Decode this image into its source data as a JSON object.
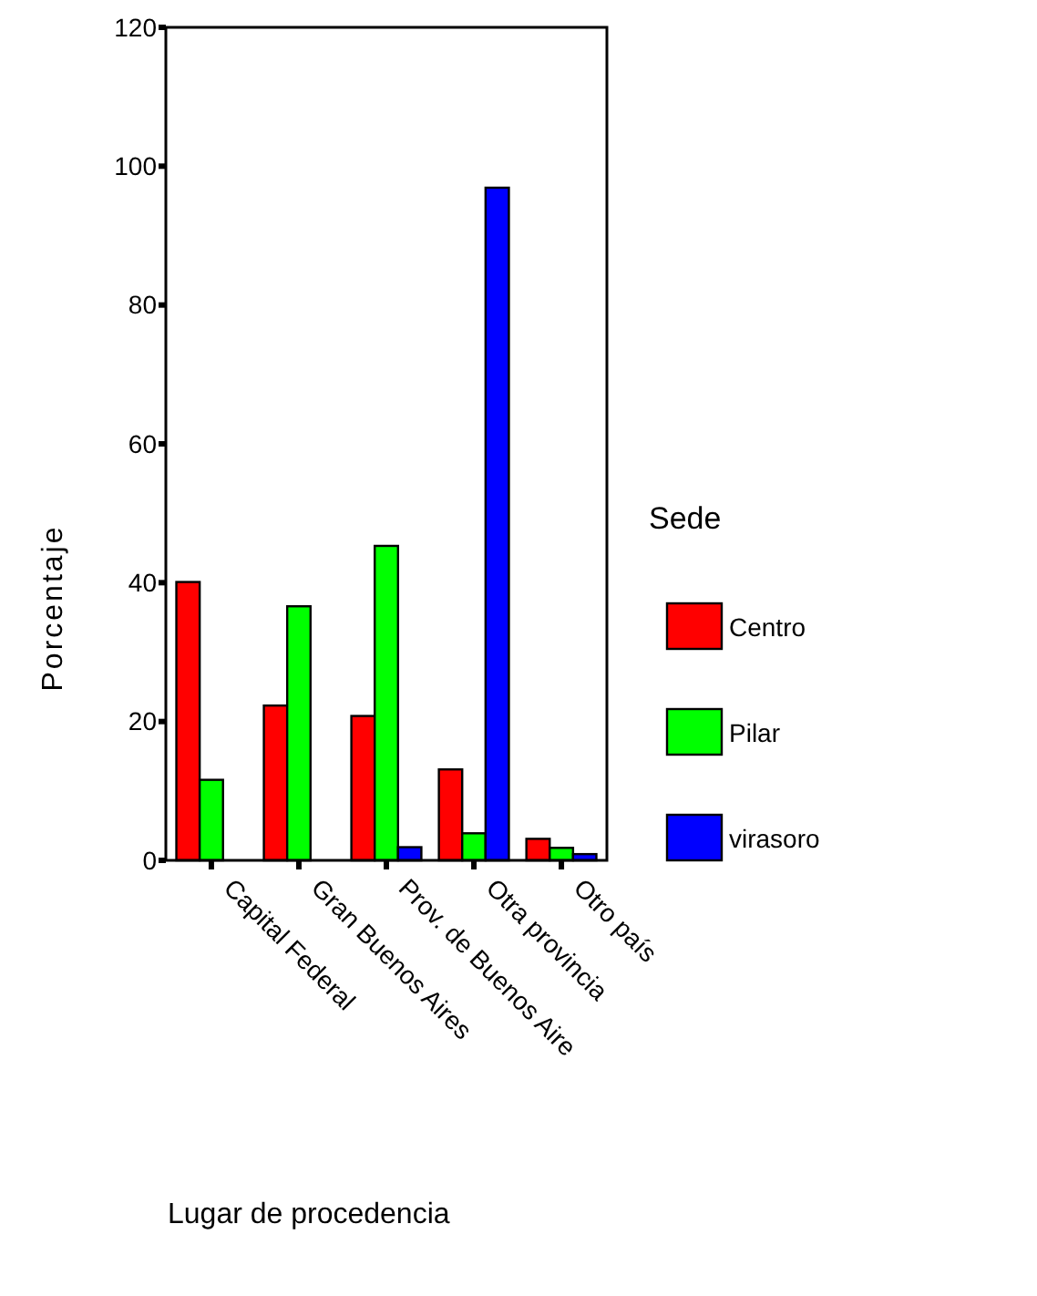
{
  "chart_data": {
    "type": "bar",
    "xlabel": "Lugar de procedencia",
    "ylabel": "Porcentaje",
    "legend_title": "Sede",
    "legend": "right",
    "categories": [
      "Capital Federal",
      "Gran Buenos Aires",
      "Prov. de Buenos Aire",
      "Otra provincia",
      "Otro país"
    ],
    "ylim": [
      0,
      120
    ],
    "yticks": [
      0,
      20,
      40,
      60,
      80,
      100,
      120
    ],
    "series": [
      {
        "name": "Centro",
        "color": "#ff0000",
        "values": [
          40.1,
          22.3,
          20.8,
          13.1,
          3.1
        ]
      },
      {
        "name": "Pilar",
        "color": "#00ff00",
        "values": [
          11.6,
          36.6,
          45.3,
          3.9,
          1.8
        ]
      },
      {
        "name": "virasoro",
        "color": "#0000ff",
        "values": [
          0,
          0,
          1.9,
          96.9,
          0.9
        ]
      }
    ]
  }
}
